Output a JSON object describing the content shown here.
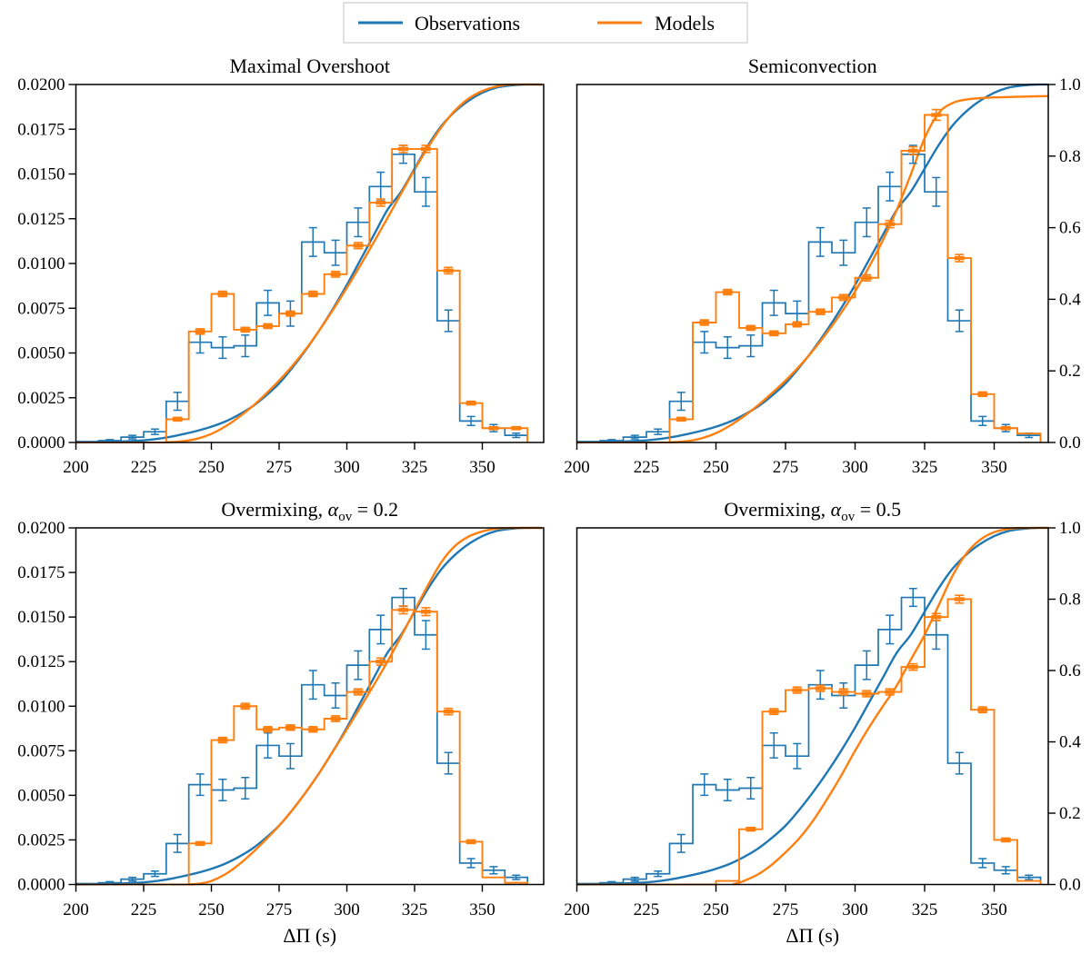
{
  "figure": {
    "legend": {
      "items": [
        {
          "label": "Observations",
          "color": "#1f77b4"
        },
        {
          "label": "Models",
          "color": "#ff7f0e"
        }
      ]
    },
    "axes": {
      "x_label": "ΔΠ (s)",
      "x_tick_labels": [
        "200",
        "225",
        "250",
        "275",
        "300",
        "325",
        "350"
      ],
      "x_tick_values": [
        200,
        225,
        250,
        275,
        300,
        325,
        350
      ],
      "x_range": [
        200,
        372
      ],
      "left_tick_labels": [
        "0.0000",
        "0.0025",
        "0.0050",
        "0.0075",
        "0.0100",
        "0.0125",
        "0.0150",
        "0.0175",
        "0.0200"
      ],
      "left_tick_values": [
        0,
        0.0025,
        0.005,
        0.0075,
        0.01,
        0.0125,
        0.015,
        0.0175,
        0.02
      ],
      "left_range": [
        0,
        0.02
      ],
      "right_tick_labels": [
        "0.0",
        "0.2",
        "0.4",
        "0.6",
        "0.8",
        "1.0"
      ],
      "right_tick_values": [
        0,
        0.2,
        0.4,
        0.6,
        0.8,
        1.0
      ],
      "right_range": [
        0,
        1
      ]
    },
    "colors": {
      "observations": "#1f77b4",
      "models": "#ff7f0e",
      "axis": "#000000",
      "legend_border": "#cccccc",
      "background": "#ffffff"
    }
  },
  "chart_data": {
    "type": "histogram+cdf 2x2 grid",
    "x_unit": "seconds (period spacing ΔΠ)",
    "bin_edges": [
      200,
      208.33,
      216.67,
      225,
      233.33,
      241.67,
      250,
      258.33,
      266.67,
      275,
      283.33,
      291.67,
      300,
      308.33,
      316.67,
      325,
      333.33,
      341.67,
      350,
      358.33,
      366.67
    ],
    "observations": {
      "hist": [
        5e-05,
        0.0001,
        0.0003,
        0.0006,
        0.0023,
        0.0056,
        0.0053,
        0.0054,
        0.0078,
        0.0072,
        0.0112,
        0.0106,
        0.0123,
        0.0143,
        0.0161,
        0.014,
        0.0068,
        0.0012,
        0.0008,
        0.0004
      ],
      "err": [
        4e-05,
        6e-05,
        0.0001,
        0.00015,
        0.0005,
        0.0006,
        0.0006,
        0.0006,
        0.0007,
        0.0007,
        0.0008,
        0.0007,
        0.0008,
        0.0008,
        0.0005,
        0.0008,
        0.0006,
        0.00025,
        0.0002,
        0.00012
      ],
      "cdf": [
        [
          200,
          0
        ],
        [
          210,
          0.001
        ],
        [
          215,
          0.002
        ],
        [
          220,
          0.004
        ],
        [
          225,
          0.006
        ],
        [
          230,
          0.01
        ],
        [
          235,
          0.016
        ],
        [
          240,
          0.024
        ],
        [
          245,
          0.033
        ],
        [
          250,
          0.044
        ],
        [
          255,
          0.058
        ],
        [
          260,
          0.077
        ],
        [
          265,
          0.1
        ],
        [
          270,
          0.13
        ],
        [
          275,
          0.165
        ],
        [
          280,
          0.21
        ],
        [
          285,
          0.26
        ],
        [
          290,
          0.315
        ],
        [
          295,
          0.375
        ],
        [
          300,
          0.44
        ],
        [
          305,
          0.51
        ],
        [
          310,
          0.58
        ],
        [
          315,
          0.65
        ],
        [
          320,
          0.7
        ],
        [
          325,
          0.765
        ],
        [
          330,
          0.83
        ],
        [
          335,
          0.885
        ],
        [
          340,
          0.925
        ],
        [
          345,
          0.955
        ],
        [
          350,
          0.977
        ],
        [
          355,
          0.991
        ],
        [
          360,
          0.997
        ],
        [
          365,
          1.0
        ],
        [
          372,
          1.0
        ]
      ]
    },
    "panels": [
      {
        "id": "maximal-overshoot",
        "title": [
          {
            "t": "Maximal Overshoot"
          }
        ],
        "models": {
          "hist": [
            0,
            0,
            0,
            0,
            0.0013,
            0.0062,
            0.0083,
            0.0063,
            0.0065,
            0.0072,
            0.0083,
            0.0094,
            0.011,
            0.0134,
            0.0164,
            0.0164,
            0.0096,
            0.0022,
            0.0008,
            0.0008
          ],
          "err": [
            0,
            0,
            0,
            0,
            0.0001,
            0.00015,
            0.00015,
            0.00013,
            0.00013,
            0.00014,
            0.00015,
            0.00016,
            0.00017,
            0.0002,
            0.0002,
            0.0002,
            0.00018,
            0.0001,
            8e-05,
            8e-05
          ],
          "cdf": [
            [
              233,
              0
            ],
            [
              240,
              0.004
            ],
            [
              245,
              0.011
            ],
            [
              250,
              0.024
            ],
            [
              255,
              0.044
            ],
            [
              260,
              0.07
            ],
            [
              265,
              0.1
            ],
            [
              270,
              0.135
            ],
            [
              275,
              0.173
            ],
            [
              280,
              0.215
            ],
            [
              285,
              0.262
            ],
            [
              290,
              0.315
            ],
            [
              295,
              0.372
            ],
            [
              300,
              0.432
            ],
            [
              305,
              0.495
            ],
            [
              310,
              0.56
            ],
            [
              315,
              0.627
            ],
            [
              320,
              0.695
            ],
            [
              325,
              0.762
            ],
            [
              330,
              0.825
            ],
            [
              335,
              0.882
            ],
            [
              340,
              0.928
            ],
            [
              345,
              0.961
            ],
            [
              350,
              0.982
            ],
            [
              355,
              0.994
            ],
            [
              360,
              1.0
            ],
            [
              372,
              1.0
            ]
          ]
        }
      },
      {
        "id": "semiconvection",
        "title": [
          {
            "t": "Semiconvection"
          }
        ],
        "models": {
          "hist": [
            0,
            0,
            0,
            0,
            0.0013,
            0.0067,
            0.0084,
            0.0064,
            0.0061,
            0.0066,
            0.0073,
            0.0081,
            0.0092,
            0.0122,
            0.0163,
            0.0183,
            0.0103,
            0.0027,
            0.0008,
            0.0005
          ],
          "err": [
            0,
            0,
            0,
            0,
            0.0001,
            0.00015,
            0.00015,
            0.00013,
            0.00013,
            0.00014,
            0.00015,
            0.00016,
            0.00017,
            0.0002,
            0.00022,
            0.0003,
            0.0002,
            0.00012,
            8e-05,
            8e-05
          ],
          "cdf": [
            [
              233,
              0
            ],
            [
              240,
              0.004
            ],
            [
              245,
              0.012
            ],
            [
              250,
              0.026
            ],
            [
              255,
              0.047
            ],
            [
              260,
              0.073
            ],
            [
              265,
              0.103
            ],
            [
              270,
              0.137
            ],
            [
              275,
              0.173
            ],
            [
              280,
              0.213
            ],
            [
              285,
              0.258
            ],
            [
              290,
              0.308
            ],
            [
              295,
              0.362
            ],
            [
              300,
              0.422
            ],
            [
              305,
              0.49
            ],
            [
              310,
              0.565
            ],
            [
              315,
              0.65
            ],
            [
              320,
              0.748
            ],
            [
              325,
              0.85
            ],
            [
              330,
              0.92
            ],
            [
              335,
              0.948
            ],
            [
              340,
              0.958
            ],
            [
              345,
              0.962
            ],
            [
              350,
              0.964
            ],
            [
              355,
              0.965
            ],
            [
              360,
              0.966
            ],
            [
              365,
              0.967
            ],
            [
              372,
              0.968
            ]
          ]
        }
      },
      {
        "id": "overmixing-alpha-0.2",
        "title": [
          {
            "t": "Overmixing, "
          },
          {
            "t": "α",
            "italic": true
          },
          {
            "t": "ov",
            "sub": true
          },
          {
            "t": " = 0.2"
          }
        ],
        "models": {
          "hist": [
            0,
            0,
            0,
            0,
            0,
            0.0023,
            0.0081,
            0.01,
            0.0087,
            0.0088,
            0.0087,
            0.0093,
            0.0108,
            0.0125,
            0.0154,
            0.0153,
            0.0097,
            0.0024,
            0.0004,
            0.0001
          ],
          "err": [
            0,
            0,
            0,
            0,
            0,
            0.0001,
            0.00015,
            0.00016,
            0.00015,
            0.00015,
            0.00015,
            0.00016,
            0.00017,
            0.0002,
            0.00022,
            0.00022,
            0.00018,
            0.0001,
            6e-05,
            5e-05
          ],
          "cdf": [
            [
              242,
              0
            ],
            [
              246,
              0.003
            ],
            [
              250,
              0.01
            ],
            [
              255,
              0.028
            ],
            [
              260,
              0.055
            ],
            [
              265,
              0.088
            ],
            [
              270,
              0.125
            ],
            [
              275,
              0.165
            ],
            [
              280,
              0.21
            ],
            [
              285,
              0.26
            ],
            [
              290,
              0.315
            ],
            [
              295,
              0.375
            ],
            [
              300,
              0.435
            ],
            [
              305,
              0.497
            ],
            [
              310,
              0.56
            ],
            [
              315,
              0.625
            ],
            [
              320,
              0.695
            ],
            [
              325,
              0.768
            ],
            [
              330,
              0.84
            ],
            [
              335,
              0.905
            ],
            [
              340,
              0.95
            ],
            [
              345,
              0.976
            ],
            [
              350,
              0.99
            ],
            [
              355,
              0.998
            ],
            [
              360,
              1.0
            ],
            [
              372,
              1.0
            ]
          ]
        }
      },
      {
        "id": "overmixing-alpha-0.5",
        "title": [
          {
            "t": "Overmixing, "
          },
          {
            "t": "α",
            "italic": true
          },
          {
            "t": "ov",
            "sub": true
          },
          {
            "t": " = 0.5"
          }
        ],
        "models": {
          "hist": [
            0,
            0,
            0,
            0,
            0,
            0,
            0.0002,
            0.0031,
            0.0097,
            0.0109,
            0.011,
            0.0108,
            0.0107,
            0.0108,
            0.0122,
            0.015,
            0.016,
            0.0098,
            0.0025,
            0.0002
          ],
          "err": [
            0,
            0,
            0,
            0,
            0,
            0,
            5e-05,
            0.0001,
            0.00016,
            0.00017,
            0.00017,
            0.00017,
            0.00017,
            0.00017,
            0.00018,
            0.0002,
            0.00022,
            0.00016,
            0.0001,
            5e-05
          ],
          "cdf": [
            [
              256,
              0
            ],
            [
              260,
              0.01
            ],
            [
              265,
              0.028
            ],
            [
              270,
              0.055
            ],
            [
              275,
              0.09
            ],
            [
              280,
              0.13
            ],
            [
              285,
              0.18
            ],
            [
              290,
              0.24
            ],
            [
              295,
              0.305
            ],
            [
              300,
              0.375
            ],
            [
              305,
              0.44
            ],
            [
              310,
              0.5
            ],
            [
              315,
              0.558
            ],
            [
              320,
              0.63
            ],
            [
              325,
              0.7
            ],
            [
              330,
              0.782
            ],
            [
              335,
              0.865
            ],
            [
              340,
              0.928
            ],
            [
              345,
              0.967
            ],
            [
              350,
              0.988
            ],
            [
              355,
              0.997
            ],
            [
              360,
              1.0
            ],
            [
              372,
              1.0
            ]
          ]
        }
      }
    ]
  }
}
